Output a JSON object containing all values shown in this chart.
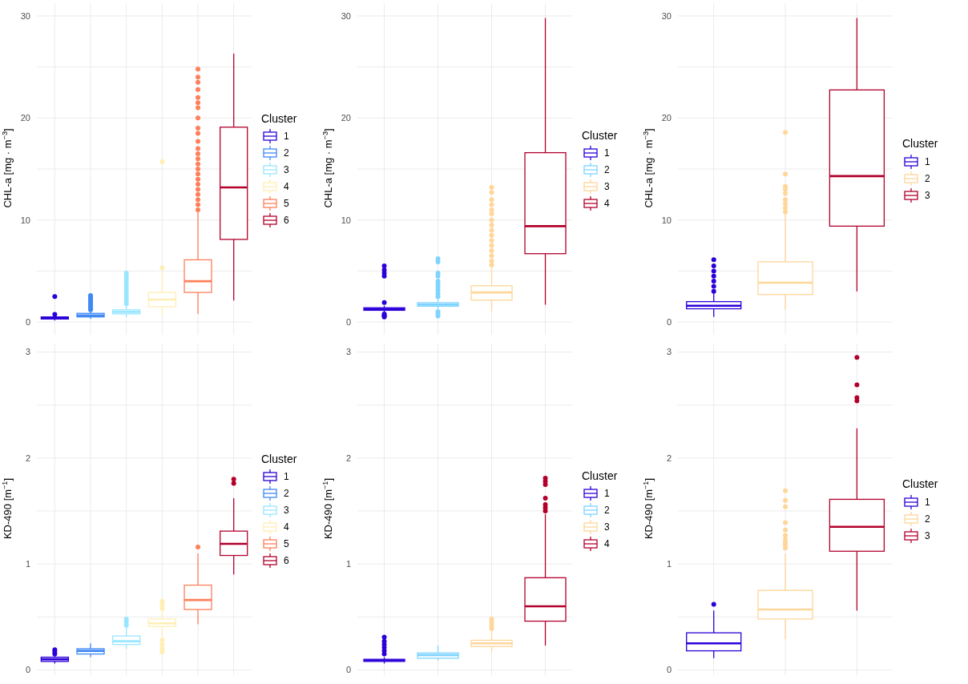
{
  "chart_data": [
    {
      "type": "box",
      "ylabel": "CHL-a [mg · m$^{−3}$]",
      "categories": [
        null,
        null,
        null,
        null,
        null,
        null
      ],
      "ylim": [
        -1.25,
        31.25
      ],
      "yticks": [
        0,
        {
          "value": 5,
          "label": null
        },
        10,
        {
          "value": 15,
          "label": null
        },
        20,
        {
          "value": 25,
          "label": null
        },
        30
      ],
      "grid": true,
      "tick_labels": "y",
      "legend": "right",
      "legend_title": "Cluster",
      "series": [
        {
          "name": "1",
          "color": "#2b00d9",
          "boxes": [
            {
              "low": 0.15,
              "q1": 0.3,
              "median": 0.4,
              "q3": 0.5,
              "high": 0.6,
              "outliers": [
                0.76,
                2.5
              ]
            },
            null,
            null,
            null,
            null,
            null
          ]
        },
        {
          "name": "2",
          "color": "#3f88f5",
          "boxes": [
            null,
            {
              "low": 0.3,
              "q1": 0.5,
              "median": 0.65,
              "q3": 0.85,
              "high": 1.0,
              "outliers": [
                1.2,
                1.4,
                1.6,
                1.8,
                2.0,
                2.2,
                2.4,
                2.6
              ]
            },
            null,
            null,
            null,
            null
          ]
        },
        {
          "name": "3",
          "color": "#99e6ff",
          "boxes": [
            null,
            null,
            {
              "low": 0.45,
              "q1": 0.8,
              "median": 1.0,
              "q3": 1.2,
              "high": 1.7,
              "outliers": [
                1.8,
                2.1,
                2.4,
                2.7,
                3.0,
                3.3,
                3.6,
                3.9,
                4.2,
                4.5,
                4.8
              ]
            },
            null,
            null,
            null
          ]
        },
        {
          "name": "4",
          "color": "#ffeeb3",
          "boxes": [
            null,
            null,
            null,
            {
              "low": 0.6,
              "q1": 1.5,
              "median": 2.2,
              "q3": 2.9,
              "high": 5.0,
              "outliers": [
                5.3,
                15.7
              ]
            },
            null,
            null
          ]
        },
        {
          "name": "5",
          "color": "#ff7f5a",
          "boxes": [
            null,
            null,
            null,
            null,
            {
              "low": 0.8,
              "q1": 2.9,
              "median": 4.0,
              "q3": 6.1,
              "high": 10.8,
              "outliers": [
                11,
                11.5,
                12,
                12.5,
                13,
                13.5,
                14,
                14.5,
                15,
                15.5,
                16,
                16.5,
                17,
                17.7,
                18.5,
                19,
                20,
                21,
                21.5,
                22,
                22.8,
                23.5,
                24,
                24.8
              ]
            },
            null
          ]
        },
        {
          "name": "6",
          "color": "#b2002b",
          "boxes": [
            null,
            null,
            null,
            null,
            null,
            {
              "low": 2.1,
              "q1": 8.1,
              "median": 13.2,
              "q3": 19.1,
              "high": 26.3
            }
          ]
        }
      ]
    },
    {
      "type": "box",
      "ylabel": "CHL-a [mg · m$^{−3}$]",
      "categories": [
        null,
        null,
        null,
        null
      ],
      "ylim": [
        -1.25,
        31.25
      ],
      "yticks": [
        0,
        {
          "value": 5,
          "label": null
        },
        10,
        {
          "value": 15,
          "label": null
        },
        20,
        {
          "value": 25,
          "label": null
        },
        30
      ],
      "grid": true,
      "tick_labels": "y",
      "legend": "right",
      "legend_title": "Cluster",
      "series": [
        {
          "name": "1",
          "color": "#2b00d9",
          "boxes": [
            {
              "low": 1.0,
              "q1": 1.15,
              "median": 1.25,
              "q3": 1.4,
              "high": 1.6,
              "outliers": [
                0.5,
                0.6,
                0.7,
                0.8,
                1.9,
                4.5,
                4.8,
                5.1,
                5.5
              ]
            },
            null,
            null,
            null
          ]
        },
        {
          "name": "2",
          "color": "#7fd4ff",
          "boxes": [
            null,
            {
              "low": 1.2,
              "q1": 1.55,
              "median": 1.7,
              "q3": 1.9,
              "high": 2.4,
              "outliers": [
                0.6,
                0.8,
                1.0,
                2.5,
                2.8,
                3.1,
                3.4,
                3.7,
                4.0,
                4.5,
                4.8,
                5.9,
                6.2
              ]
            },
            null,
            null
          ]
        },
        {
          "name": "3",
          "color": "#ffd699",
          "boxes": [
            null,
            null,
            {
              "low": 1.05,
              "q1": 2.15,
              "median": 2.9,
              "q3": 3.55,
              "high": 5.4,
              "outliers": [
                5.6,
                6.0,
                6.5,
                7.0,
                7.5,
                8.0,
                8.5,
                9.0,
                9.5,
                10.0,
                10.6,
                11.0,
                11.5,
                12.0,
                12.7,
                13.2
              ]
            },
            null
          ]
        },
        {
          "name": "4",
          "color": "#b2002b",
          "boxes": [
            null,
            null,
            null,
            {
              "low": 1.7,
              "q1": 6.7,
              "median": 9.4,
              "q3": 16.6,
              "high": 29.8
            }
          ]
        }
      ]
    },
    {
      "type": "box",
      "ylabel": "CHL-a [mg · m$^{−3}$]",
      "categories": [
        null,
        null,
        null
      ],
      "ylim": [
        -1.25,
        31.25
      ],
      "yticks": [
        0,
        {
          "value": 5,
          "label": null
        },
        10,
        {
          "value": 15,
          "label": null
        },
        20,
        {
          "value": 25,
          "label": null
        },
        30
      ],
      "grid": true,
      "tick_labels": "y",
      "legend": "right",
      "legend_title": "Cluster",
      "series": [
        {
          "name": "1",
          "color": "#2b00d9",
          "boxes": [
            {
              "low": 0.5,
              "q1": 1.3,
              "median": 1.6,
              "q3": 2.0,
              "high": 2.9,
              "outliers": [
                3.0,
                3.5,
                4.0,
                4.5,
                5.0,
                5.5,
                6.1
              ]
            },
            null,
            null
          ]
        },
        {
          "name": "2",
          "color": "#ffd699",
          "boxes": [
            null,
            {
              "low": 1.2,
              "q1": 2.7,
              "median": 3.85,
              "q3": 5.9,
              "high": 10.6,
              "outliers": [
                10.8,
                11.2,
                11.6,
                12.0,
                12.6,
                13.0,
                13.3,
                14.5,
                18.6
              ]
            },
            null
          ]
        },
        {
          "name": "3",
          "color": "#b2002b",
          "boxes": [
            null,
            null,
            {
              "low": 3.0,
              "q1": 9.4,
              "median": 14.3,
              "q3": 22.75,
              "high": 29.8
            }
          ]
        }
      ]
    },
    {
      "type": "box",
      "ylabel": "KD-490 [m$^{−1}$]",
      "categories": [
        null,
        null,
        null,
        null,
        null,
        null
      ],
      "ylim": [
        -0.05,
        3.08
      ],
      "yticks": [
        0,
        {
          "value": 0.5,
          "label": null
        },
        1,
        {
          "value": 1.5,
          "label": null
        },
        2,
        {
          "value": 2.5,
          "label": null
        },
        3
      ],
      "grid": true,
      "tick_labels": "y",
      "legend": "right",
      "legend_title": "Cluster",
      "series": [
        {
          "name": "1",
          "color": "#2b00d9",
          "boxes": [
            {
              "low": 0.06,
              "q1": 0.08,
              "median": 0.1,
              "q3": 0.12,
              "high": 0.14,
              "outliers": [
                0.15,
                0.17,
                0.19
              ]
            },
            null,
            null,
            null,
            null,
            null
          ]
        },
        {
          "name": "2",
          "color": "#3f88f5",
          "boxes": [
            null,
            {
              "low": 0.12,
              "q1": 0.15,
              "median": 0.18,
              "q3": 0.2,
              "high": 0.25
            },
            null,
            null,
            null,
            null
          ]
        },
        {
          "name": "3",
          "color": "#99e6ff",
          "boxes": [
            null,
            null,
            {
              "low": 0.2,
              "q1": 0.24,
              "median": 0.27,
              "q3": 0.32,
              "high": 0.4,
              "outliers": [
                0.42,
                0.45,
                0.48
              ]
            },
            null,
            null,
            null
          ]
        },
        {
          "name": "4",
          "color": "#ffeeb3",
          "boxes": [
            null,
            null,
            null,
            {
              "low": 0.31,
              "q1": 0.41,
              "median": 0.44,
              "q3": 0.48,
              "high": 0.55,
              "outliers": [
                0.17,
                0.2,
                0.24,
                0.28,
                0.58,
                0.62,
                0.65
              ]
            },
            null,
            null
          ]
        },
        {
          "name": "5",
          "color": "#ff7f5a",
          "boxes": [
            null,
            null,
            null,
            null,
            {
              "low": 0.43,
              "q1": 0.57,
              "median": 0.66,
              "q3": 0.8,
              "high": 1.1,
              "outliers": [
                1.16
              ]
            },
            null
          ]
        },
        {
          "name": "6",
          "color": "#b2002b",
          "boxes": [
            null,
            null,
            null,
            null,
            null,
            {
              "low": 0.9,
              "q1": 1.08,
              "median": 1.19,
              "q3": 1.31,
              "high": 1.62,
              "outliers": [
                1.76,
                1.8
              ]
            }
          ]
        }
      ]
    },
    {
      "type": "box",
      "ylabel": "KD-490 [m$^{−1}$]",
      "categories": [
        null,
        null,
        null,
        null
      ],
      "ylim": [
        -0.05,
        3.08
      ],
      "yticks": [
        0,
        {
          "value": 0.5,
          "label": null
        },
        1,
        {
          "value": 1.5,
          "label": null
        },
        2,
        {
          "value": 2.5,
          "label": null
        },
        3
      ],
      "grid": true,
      "tick_labels": "y",
      "legend": "right",
      "legend_title": "Cluster",
      "series": [
        {
          "name": "1",
          "color": "#2b00d9",
          "boxes": [
            {
              "low": 0.06,
              "q1": 0.08,
              "median": 0.09,
              "q3": 0.1,
              "high": 0.12,
              "outliers": [
                0.15,
                0.18,
                0.21,
                0.24,
                0.27,
                0.31
              ]
            },
            null,
            null,
            null
          ]
        },
        {
          "name": "2",
          "color": "#7fd4ff",
          "boxes": [
            null,
            {
              "low": 0.09,
              "q1": 0.11,
              "median": 0.14,
              "q3": 0.16,
              "high": 0.23
            },
            null,
            null
          ]
        },
        {
          "name": "3",
          "color": "#ffd699",
          "boxes": [
            null,
            null,
            {
              "low": 0.17,
              "q1": 0.22,
              "median": 0.25,
              "q3": 0.28,
              "high": 0.37,
              "outliers": [
                0.39,
                0.42,
                0.45,
                0.48
              ]
            },
            null
          ]
        },
        {
          "name": "4",
          "color": "#b2002b",
          "boxes": [
            null,
            null,
            null,
            {
              "low": 0.23,
              "q1": 0.46,
              "median": 0.6,
              "q3": 0.87,
              "high": 1.47,
              "outliers": [
                1.5,
                1.53,
                1.56,
                1.62,
                1.75,
                1.78,
                1.81
              ]
            }
          ]
        }
      ]
    },
    {
      "type": "box",
      "ylabel": "KD-490 [m$^{−1}$]",
      "categories": [
        null,
        null,
        null
      ],
      "ylim": [
        -0.05,
        3.08
      ],
      "yticks": [
        0,
        {
          "value": 0.5,
          "label": null
        },
        1,
        {
          "value": 1.5,
          "label": null
        },
        2,
        {
          "value": 2.5,
          "label": null
        },
        3
      ],
      "grid": true,
      "tick_labels": "y",
      "legend": "right",
      "legend_title": "Cluster",
      "series": [
        {
          "name": "1",
          "color": "#2b00d9",
          "boxes": [
            {
              "low": 0.11,
              "q1": 0.18,
              "median": 0.25,
              "q3": 0.35,
              "high": 0.56,
              "outliers": [
                0.62
              ]
            },
            null,
            null
          ]
        },
        {
          "name": "2",
          "color": "#ffd699",
          "boxes": [
            null,
            {
              "low": 0.29,
              "q1": 0.48,
              "median": 0.57,
              "q3": 0.75,
              "high": 1.1,
              "outliers": [
                1.15,
                1.18,
                1.2,
                1.23,
                1.27,
                1.32,
                1.39,
                1.54,
                1.6,
                1.69
              ]
            },
            null
          ]
        },
        {
          "name": "3",
          "color": "#b2002b",
          "boxes": [
            null,
            null,
            {
              "low": 0.56,
              "q1": 1.12,
              "median": 1.35,
              "q3": 1.61,
              "high": 2.28,
              "outliers": [
                2.54,
                2.57,
                2.69,
                2.95
              ]
            }
          ]
        }
      ]
    }
  ]
}
